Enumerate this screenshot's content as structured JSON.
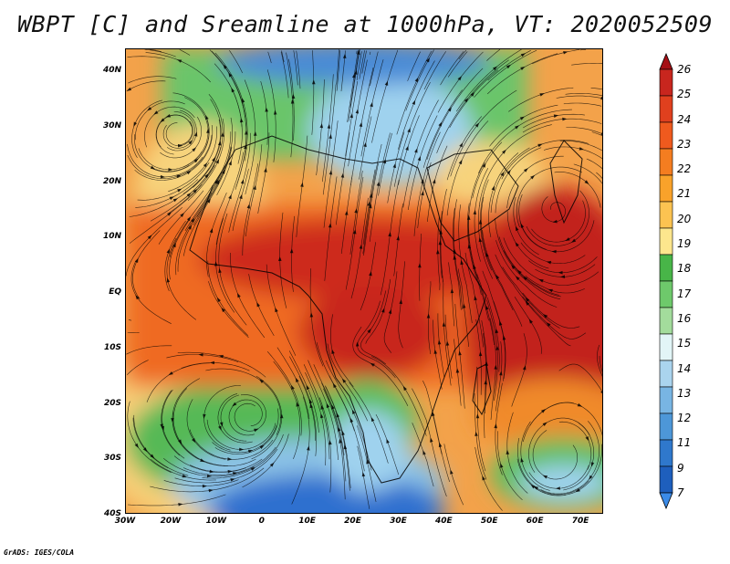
{
  "title": "WBPT [C] and Sreamline at 1000hPa, VT: 2020052509",
  "credit": "GrADS: IGES/COLA",
  "map": {
    "latitude_labels": [
      "40N",
      "30N",
      "20N",
      "10N",
      "EQ",
      "10S",
      "20S",
      "30S",
      "40S"
    ],
    "latitude_values": [
      40,
      30,
      20,
      10,
      0,
      -10,
      -20,
      -30,
      -40
    ],
    "longitude_labels": [
      "30W",
      "20W",
      "10W",
      "0",
      "10E",
      "20E",
      "30E",
      "40E",
      "50E",
      "60E",
      "70E"
    ],
    "longitude_values": [
      -30,
      -20,
      -10,
      0,
      10,
      20,
      30,
      40,
      50,
      60,
      70
    ],
    "lon_range": [
      -30,
      75
    ],
    "lat_range": [
      -40,
      44
    ]
  },
  "colorbar": {
    "labels": [
      "26",
      "25",
      "24",
      "23",
      "22",
      "21",
      "20",
      "19",
      "18",
      "17",
      "16",
      "15",
      "14",
      "13",
      "12",
      "11",
      "9",
      "7"
    ],
    "colors": [
      "#a50f15",
      "#c8261e",
      "#e0401e",
      "#ef5a1e",
      "#f47d20",
      "#f9a22a",
      "#fcc351",
      "#fde68d",
      "#48b548",
      "#6ec96b",
      "#a3dc9c",
      "#e2f5f7",
      "#aad4ee",
      "#78b5e3",
      "#4d97d8",
      "#2f78cc",
      "#1e5fbd",
      "#3b8be8"
    ]
  },
  "colors": {
    "hot": "#c0181a",
    "warm": "#f08a2a",
    "mild": "#f7d07a",
    "green": "#5cbf5c",
    "cool": "#9fd2ee",
    "cold": "#2f6fcf",
    "coast": "#000000",
    "streamline": "#000000"
  }
}
